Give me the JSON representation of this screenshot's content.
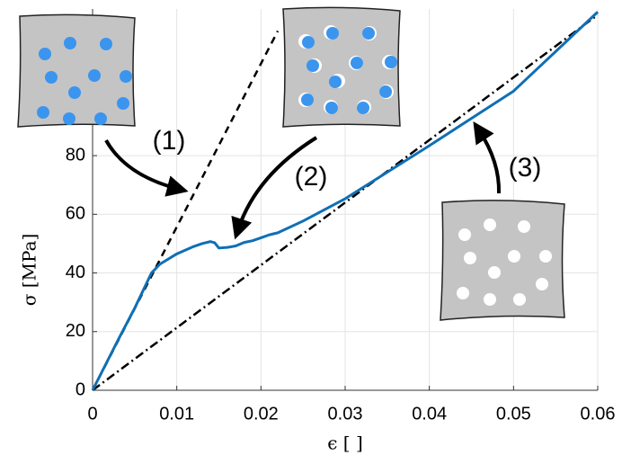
{
  "chart_data": {
    "type": "line",
    "xlabel": "ϵ [ ]",
    "ylabel": "σ [MPa]",
    "annotations": [
      "(1)",
      "(2)",
      "(3)"
    ],
    "xlim": [
      0,
      0.06
    ],
    "ylim": [
      0,
      130
    ],
    "xticks": [
      0,
      0.01,
      0.02,
      0.03,
      0.04,
      0.05,
      0.06
    ],
    "yticks": [
      0,
      20,
      40,
      60,
      80
    ],
    "grid": true,
    "series": [
      {
        "color": "#000000",
        "linestyle": "dashed",
        "width": 2.5,
        "x": [
          0,
          0.022
        ],
        "values": [
          0,
          122.5
        ]
      },
      {
        "color": "#000000",
        "linestyle": "dashdot",
        "width": 2.5,
        "x": [
          0,
          0.06
        ],
        "values": [
          0,
          128
        ]
      },
      {
        "color": "#0f6fb5",
        "linestyle": "solid",
        "width": 3,
        "x": [
          0,
          0.003,
          0.005,
          0.007,
          0.008,
          0.01,
          0.012,
          0.013,
          0.014,
          0.0145,
          0.015,
          0.016,
          0.017,
          0.018,
          0.019,
          0.02,
          0.021,
          0.022,
          0.025,
          0.03,
          0.04,
          0.05,
          0.06
        ],
        "values": [
          0,
          17,
          28,
          40,
          43,
          46.5,
          49,
          50,
          50.7,
          50.3,
          48.5,
          48.7,
          49.2,
          50.4,
          51,
          52,
          53,
          53.7,
          57.7,
          65.3,
          83.4,
          102,
          129
        ]
      }
    ]
  }
}
